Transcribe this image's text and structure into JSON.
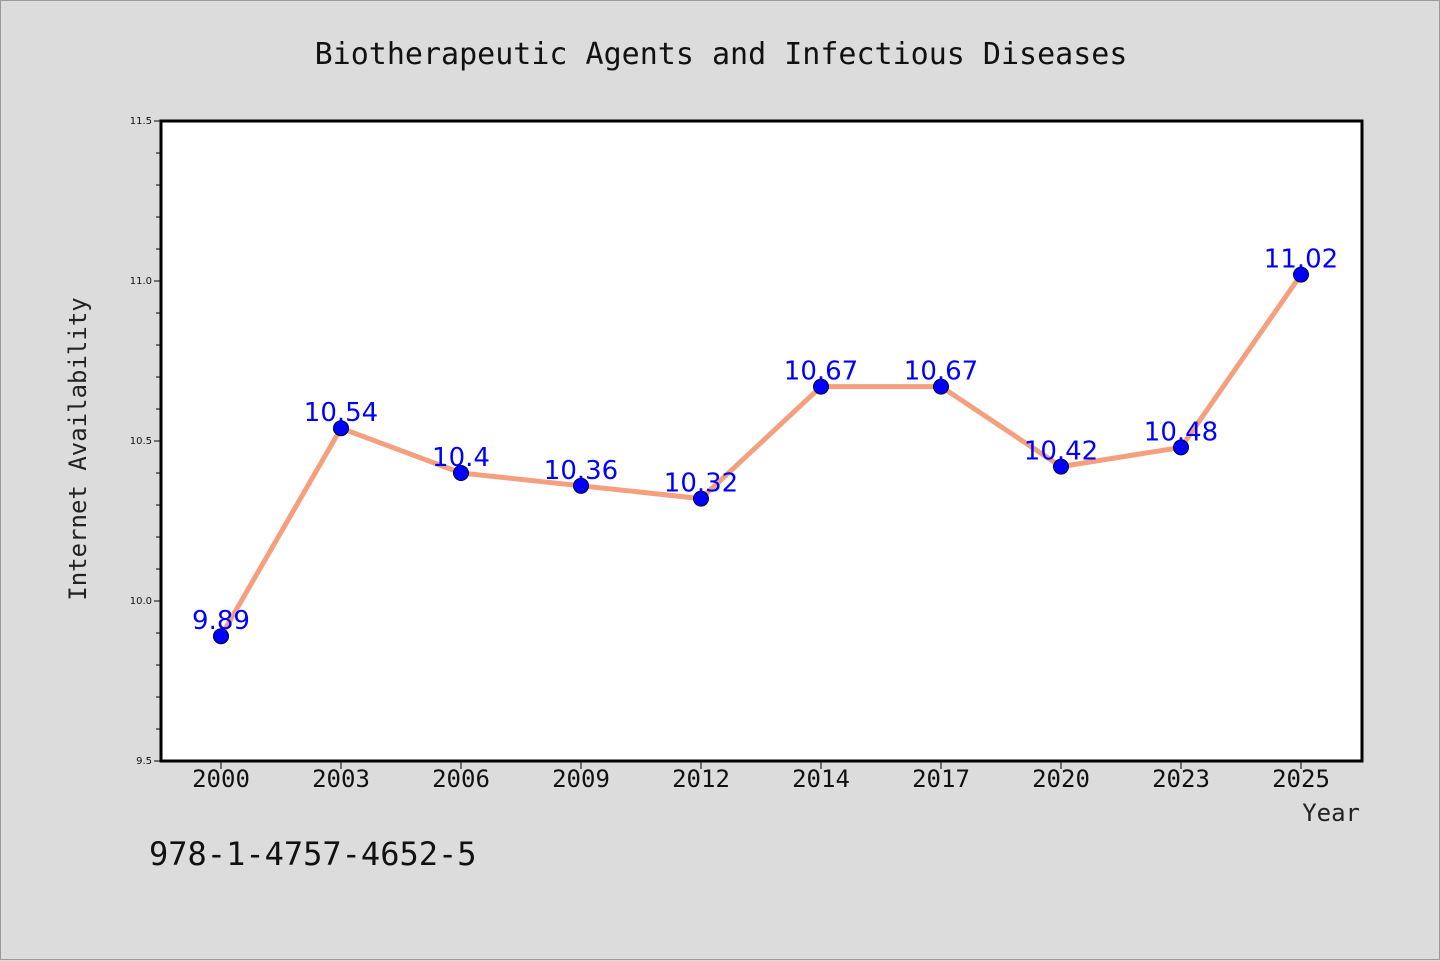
{
  "chart_data": {
    "type": "line",
    "title": "Biotherapeutic Agents and Infectious Diseases",
    "xlabel": "Year",
    "ylabel": "Internet Availability",
    "categories": [
      "2000",
      "2003",
      "2006",
      "2009",
      "2012",
      "2014",
      "2017",
      "2020",
      "2023",
      "2025"
    ],
    "series": [
      {
        "values": [
          9.89,
          10.54,
          10.4,
          10.36,
          10.32,
          10.67,
          10.67,
          10.42,
          10.48,
          11.02
        ],
        "data_labels": [
          "9.89",
          "10.54",
          "10.4",
          "10.36",
          "10.32",
          "10.67",
          "10.67",
          "10.42",
          "10.48",
          "11.02"
        ],
        "line_color": "#f4a07e",
        "marker_color": "#0000ff"
      }
    ],
    "ylim": [
      9.5,
      11.5
    ],
    "yticks": [
      "9.5",
      "10.0",
      "10.5",
      "11.0",
      "11.5"
    ],
    "grid": false,
    "legend": "none"
  },
  "footer_text": "978-1-4757-4652-5",
  "colors": {
    "background": "#dcdcdc",
    "plot_background": "#ffffff",
    "label_color": "#0000ff"
  }
}
